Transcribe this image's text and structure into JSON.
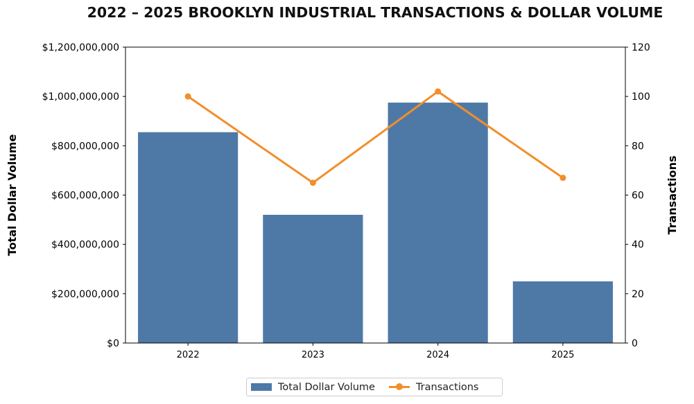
{
  "colors": {
    "bar": "#4e79a7",
    "line": "#f28e2b",
    "axis": "#000000"
  },
  "chart_data": {
    "type": "bar",
    "title": "2022 – 2025 BROOKLYN INDUSTRIAL TRANSACTIONS & DOLLAR VOLUME",
    "categories": [
      "2022",
      "2023",
      "2024",
      "2025"
    ],
    "ylabel": "Total Dollar Volume",
    "y2label": "Transactions",
    "ylim": [
      0,
      1200000000
    ],
    "y2lim": [
      0,
      120
    ],
    "yticks": [
      {
        "value": 0,
        "label": "$0"
      },
      {
        "value": 200000000,
        "label": "$200,000,000"
      },
      {
        "value": 400000000,
        "label": "$400,000,000"
      },
      {
        "value": 600000000,
        "label": "$600,000,000"
      },
      {
        "value": 800000000,
        "label": "$800,000,000"
      },
      {
        "value": 1000000000,
        "label": "$1,000,000,000"
      },
      {
        "value": 1200000000,
        "label": "$1,200,000,000"
      }
    ],
    "y2ticks": [
      {
        "value": 0,
        "label": "0"
      },
      {
        "value": 20,
        "label": "20"
      },
      {
        "value": 40,
        "label": "40"
      },
      {
        "value": 60,
        "label": "60"
      },
      {
        "value": 80,
        "label": "80"
      },
      {
        "value": 100,
        "label": "100"
      },
      {
        "value": 120,
        "label": "120"
      }
    ],
    "grid": false,
    "legend_position": "bottom-center",
    "series": [
      {
        "name": "Total Dollar Volume",
        "type": "bar",
        "axis": "left",
        "values": [
          855000000,
          520000000,
          975000000,
          250000000
        ]
      },
      {
        "name": "Transactions",
        "type": "line",
        "axis": "right",
        "values": [
          100,
          65,
          102,
          67
        ]
      }
    ]
  }
}
